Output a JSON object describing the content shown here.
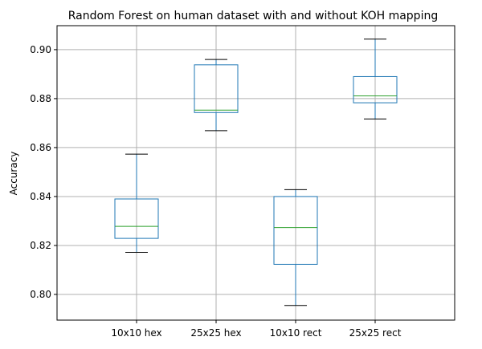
{
  "chart_data": {
    "type": "box",
    "title": "Random Forest on human dataset with and without KOH mapping",
    "xlabel": "",
    "ylabel": "Accuracy",
    "ylim": [
      0.7895,
      0.9098
    ],
    "yticks": [
      0.8,
      0.82,
      0.84,
      0.86,
      0.88,
      0.9
    ],
    "ytick_labels": [
      "0.80",
      "0.82",
      "0.84",
      "0.86",
      "0.88",
      "0.90"
    ],
    "grid": true,
    "colors": {
      "box": "#1f77b4",
      "median": "#2ca02c",
      "whisker": "#1f77b4",
      "cap": "#000000",
      "grid": "#b0b0b0"
    },
    "categories": [
      "10x10 hex",
      "25x25 hex",
      "10x10 rect",
      "25x25 rect"
    ],
    "boxes": [
      {
        "whislo": 0.8172,
        "q1": 0.8229,
        "med": 0.8278,
        "q3": 0.839,
        "whishi": 0.8573
      },
      {
        "whislo": 0.8669,
        "q1": 0.8743,
        "med": 0.8753,
        "q3": 0.8938,
        "whishi": 0.896
      },
      {
        "whislo": 0.7955,
        "q1": 0.8123,
        "med": 0.8273,
        "q3": 0.84,
        "whishi": 0.8428
      },
      {
        "whislo": 0.8717,
        "q1": 0.8783,
        "med": 0.8811,
        "q3": 0.889,
        "whishi": 0.9043
      }
    ]
  }
}
